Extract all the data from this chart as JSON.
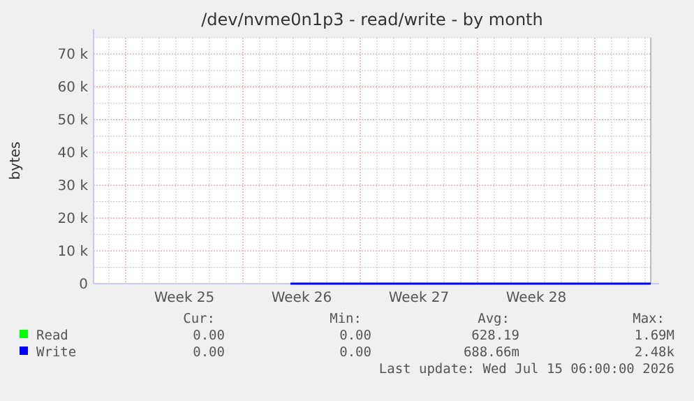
{
  "chart_data": {
    "type": "line",
    "title": "/dev/nvme0n1p3 - read/write - by month",
    "ylabel": "bytes",
    "xlim": [
      "2026-06-13T02:00",
      "2026-07-16T08:00"
    ],
    "xticks": [
      {
        "value": "2026-06-18T12:00",
        "label": "Week 25"
      },
      {
        "value": "2026-06-25T12:00",
        "label": "Week 26"
      },
      {
        "value": "2026-07-02T12:00",
        "label": "Week 27"
      },
      {
        "value": "2026-07-09T12:00",
        "label": "Week 28"
      },
      {
        "value": "2026-06-14",
        "label": null
      },
      {
        "value": "2026-06-15",
        "label": null
      },
      {
        "value": "2026-06-16",
        "label": null
      },
      {
        "value": "2026-06-17",
        "label": null
      },
      {
        "value": "2026-06-18",
        "label": null
      },
      {
        "value": "2026-06-19",
        "label": null
      },
      {
        "value": "2026-06-20",
        "label": null
      },
      {
        "value": "2026-06-21",
        "label": null
      },
      {
        "value": "2026-06-22",
        "label": null
      },
      {
        "value": "2026-06-23",
        "label": null
      },
      {
        "value": "2026-06-24",
        "label": null
      },
      {
        "value": "2026-06-25",
        "label": null
      },
      {
        "value": "2026-06-26",
        "label": null
      },
      {
        "value": "2026-06-27",
        "label": null
      },
      {
        "value": "2026-06-28",
        "label": null
      },
      {
        "value": "2026-06-29",
        "label": null
      },
      {
        "value": "2026-06-30",
        "label": null
      },
      {
        "value": "2026-07-01",
        "label": null
      },
      {
        "value": "2026-07-02",
        "label": null
      },
      {
        "value": "2026-07-03",
        "label": null
      },
      {
        "value": "2026-07-04",
        "label": null
      },
      {
        "value": "2026-07-05",
        "label": null
      },
      {
        "value": "2026-07-06",
        "label": null
      },
      {
        "value": "2026-07-07",
        "label": null
      },
      {
        "value": "2026-07-08",
        "label": null
      },
      {
        "value": "2026-07-09",
        "label": null
      },
      {
        "value": "2026-07-10",
        "label": null
      },
      {
        "value": "2026-07-11",
        "label": null
      },
      {
        "value": "2026-07-12",
        "label": null
      },
      {
        "value": "2026-07-13",
        "label": null
      },
      {
        "value": "2026-07-14",
        "label": null
      },
      {
        "value": "2026-07-15",
        "label": null
      },
      {
        "value": "2026-07-16",
        "label": null
      }
    ],
    "ylim": [
      0,
      75000
    ],
    "yticks": [
      0,
      {
        "value": 10000,
        "label": "10 k"
      },
      {
        "value": 20000,
        "label": "20 k"
      },
      {
        "value": 30000,
        "label": "30 k"
      },
      {
        "value": 40000,
        "label": "40 k"
      },
      {
        "value": 50000,
        "label": "50 k"
      },
      {
        "value": 60000,
        "label": "60 k"
      },
      {
        "value": 70000,
        "label": "70 k"
      },
      {
        "value": 5000,
        "label": null
      },
      {
        "value": 15000,
        "label": null
      },
      {
        "value": 25000,
        "label": null
      },
      {
        "value": 35000,
        "label": null
      },
      {
        "value": 45000,
        "label": null
      },
      {
        "value": 55000,
        "label": null
      },
      {
        "value": 65000,
        "label": null
      },
      {
        "value": 75000,
        "label": null
      }
    ],
    "grid": true,
    "legend": "bottom",
    "marker": "none",
    "line_style": "solid",
    "series": [
      {
        "name": "Read",
        "color": "#00ff00"
      },
      {
        "name": "Write",
        "color": "#0000ff",
        "x": [
          "2026-06-24T20:00",
          "2026-07-16T08:00"
        ],
        "values": [
          0,
          0
        ]
      }
    ],
    "annotations": [
      "Cur:",
      "Min:",
      "Avg:",
      "Max:",
      "0.00",
      "0.00",
      "628.19",
      "1.69M",
      "0.00",
      "0.00",
      "688.66m",
      "2.48k",
      "Last update: Wed Jul 15 06:00:00 2026"
    ]
  }
}
